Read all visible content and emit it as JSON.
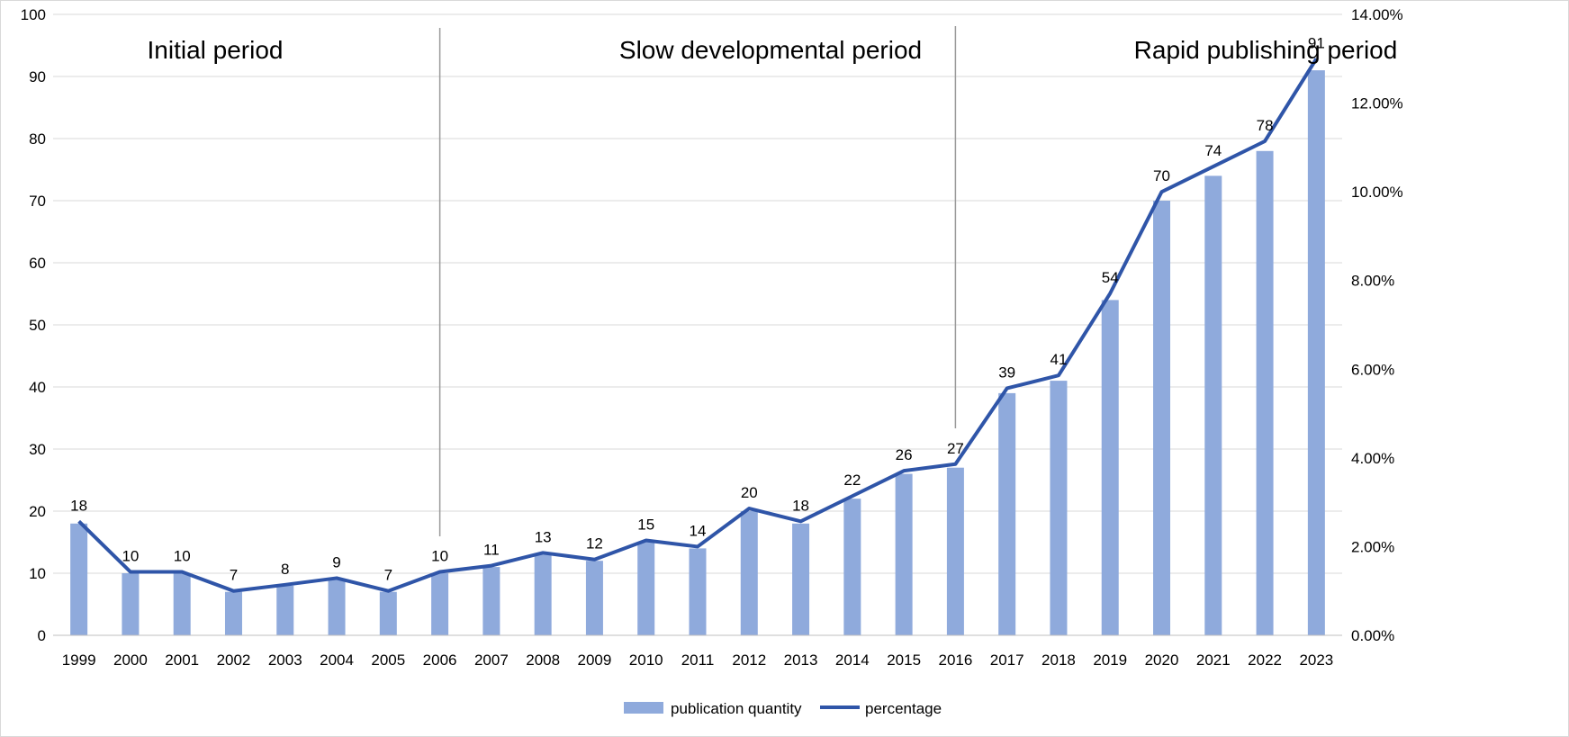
{
  "chart_data": {
    "type": "bar",
    "categories": [
      "1999",
      "2000",
      "2001",
      "2002",
      "2003",
      "2004",
      "2005",
      "2006",
      "2007",
      "2008",
      "2009",
      "2010",
      "2011",
      "2012",
      "2013",
      "2014",
      "2015",
      "2016",
      "2017",
      "2018",
      "2019",
      "2020",
      "2021",
      "2022",
      "2023"
    ],
    "series": [
      {
        "name": "publication quantity",
        "type": "bar",
        "axis": "left",
        "color": "#8faadc",
        "values": [
          18,
          10,
          10,
          7,
          8,
          9,
          7,
          10,
          11,
          13,
          12,
          15,
          14,
          20,
          18,
          22,
          26,
          27,
          39,
          41,
          54,
          70,
          74,
          78,
          91
        ]
      },
      {
        "name": "percentage",
        "type": "line",
        "axis": "right",
        "color": "#2f55a8",
        "values": [
          2.57,
          1.43,
          1.43,
          1.0,
          1.14,
          1.29,
          1.0,
          1.43,
          1.57,
          1.86,
          1.71,
          2.14,
          2.0,
          2.86,
          2.57,
          3.14,
          3.71,
          3.86,
          5.57,
          5.86,
          7.71,
          10.0,
          10.57,
          11.14,
          13.0
        ]
      }
    ],
    "ylim": [
      0,
      100
    ],
    "y_ticks": [
      "0",
      "10",
      "20",
      "30",
      "40",
      "50",
      "60",
      "70",
      "80",
      "90",
      "100"
    ],
    "y2lim": [
      0,
      14
    ],
    "y2_ticks": [
      "0.00%",
      "2.00%",
      "4.00%",
      "6.00%",
      "8.00%",
      "10.00%",
      "12.00%",
      "14.00%"
    ],
    "data_labels": [
      "18",
      "10",
      "10",
      "7",
      "8",
      "9",
      "7",
      "10",
      "11",
      "13",
      "12",
      "15",
      "14",
      "20",
      "18",
      "22",
      "26",
      "27",
      "39",
      "41",
      "54",
      "70",
      "74",
      "78",
      "91"
    ],
    "periods": [
      {
        "label": "Initial period",
        "start": "1999",
        "end": "2005"
      },
      {
        "label": "Slow developmental period",
        "start": "2006",
        "end": "2016"
      },
      {
        "label": "Rapid publishing period",
        "start": "2017",
        "end": "2023"
      }
    ],
    "dividers": [
      "2006",
      "2016"
    ],
    "grid": true,
    "legend_position": "bottom-center",
    "title": "",
    "xlabel": "",
    "ylabel": ""
  }
}
